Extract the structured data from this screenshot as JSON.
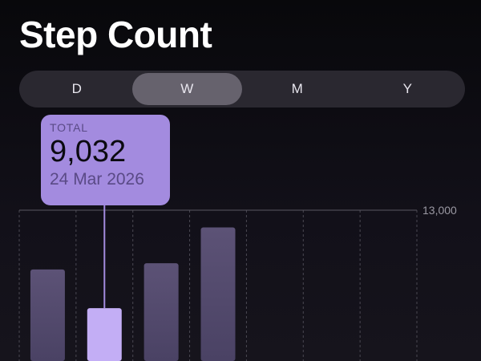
{
  "header": {
    "title": "Step Count"
  },
  "segments": {
    "items": [
      "D",
      "W",
      "M",
      "Y"
    ],
    "selected": "W"
  },
  "tooltip": {
    "label": "TOTAL",
    "value": "9,032",
    "date": "24 Mar 2026"
  },
  "colors": {
    "bar": "#5a5072",
    "selected_bar": "#c3aef5",
    "tooltip": "#a38bdf",
    "accent": "#a38bdf"
  },
  "chart_data": {
    "type": "bar",
    "columns": 7,
    "values": [
      10600,
      9032,
      10850,
      12300,
      null,
      null,
      null
    ],
    "selected_index": 1,
    "y_ticks": [
      "13,000"
    ],
    "ylim": [
      0,
      13000
    ],
    "grid": "dashed vertical",
    "y_tick_position": "right"
  }
}
